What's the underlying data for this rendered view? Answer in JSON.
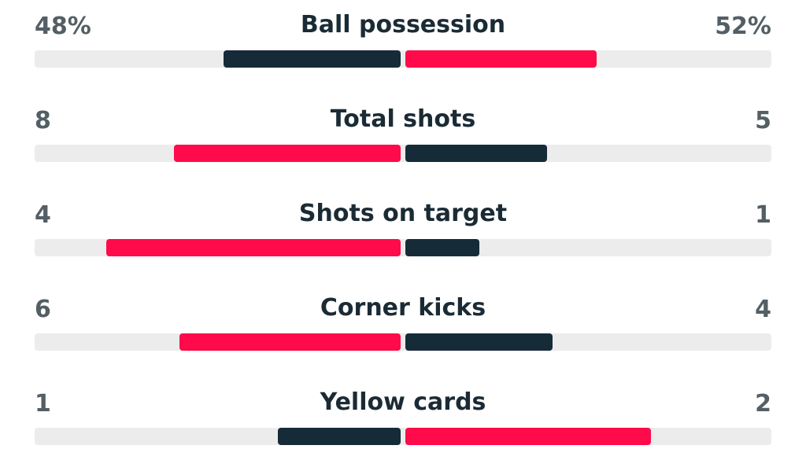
{
  "colors": {
    "dark": "#152b38",
    "red": "#ff0a4a",
    "track": "#ececec"
  },
  "stats": [
    {
      "label": "Ball possession",
      "home": "48%",
      "away": "52%",
      "home_fraction": 0.48,
      "away_fraction": 0.52,
      "home_color": "dark",
      "away_color": "red"
    },
    {
      "label": "Total shots",
      "home": "8",
      "away": "5",
      "home_fraction": 0.615,
      "away_fraction": 0.385,
      "home_color": "red",
      "away_color": "dark"
    },
    {
      "label": "Shots on target",
      "home": "4",
      "away": "1",
      "home_fraction": 0.8,
      "away_fraction": 0.2,
      "home_color": "red",
      "away_color": "dark"
    },
    {
      "label": "Corner kicks",
      "home": "6",
      "away": "4",
      "home_fraction": 0.6,
      "away_fraction": 0.4,
      "home_color": "red",
      "away_color": "dark"
    },
    {
      "label": "Yellow cards",
      "home": "1",
      "away": "2",
      "home_fraction": 0.333,
      "away_fraction": 0.667,
      "home_color": "dark",
      "away_color": "red"
    }
  ]
}
